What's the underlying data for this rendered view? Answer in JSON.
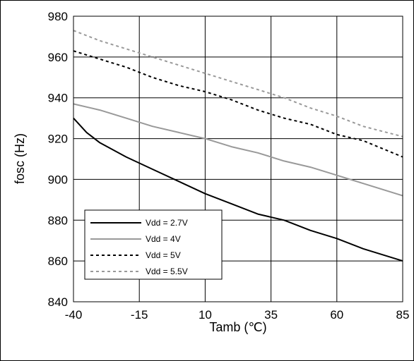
{
  "chart_data": {
    "type": "line",
    "xlabel": "Tamb (℃)",
    "ylabel": "fosc (Hz)",
    "x_ticks": [
      "-40",
      "-15",
      "10",
      "35",
      "60",
      "85"
    ],
    "y_ticks": [
      "840",
      "860",
      "880",
      "900",
      "920",
      "940",
      "960",
      "980"
    ],
    "xlim": [
      -40,
      85
    ],
    "ylim": [
      840,
      980
    ],
    "grid": true,
    "legend_position": "bottom-left",
    "series": [
      {
        "name": "Vdd = 2.7V",
        "color": "#000000",
        "style": "solid",
        "x": [
          -40,
          -35,
          -30,
          -20,
          -10,
          0,
          10,
          20,
          30,
          40,
          50,
          60,
          70,
          85
        ],
        "y": [
          930,
          923,
          918,
          911,
          905,
          899,
          893,
          888,
          883,
          880,
          875,
          871,
          866,
          860
        ]
      },
      {
        "name": "Vdd = 4V",
        "color": "#999999",
        "style": "solid",
        "x": [
          -40,
          -30,
          -20,
          -10,
          0,
          10,
          20,
          30,
          40,
          50,
          60,
          70,
          85
        ],
        "y": [
          937,
          934,
          930,
          926,
          923,
          920,
          916,
          913,
          909,
          906,
          902,
          898,
          892
        ]
      },
      {
        "name": "Vdd = 5V",
        "color": "#000000",
        "style": "dashed",
        "x": [
          -40,
          -30,
          -20,
          -10,
          0,
          10,
          20,
          30,
          40,
          50,
          60,
          70,
          85
        ],
        "y": [
          963,
          959,
          955,
          950,
          946,
          943,
          939,
          934,
          930,
          927,
          922,
          919,
          911
        ]
      },
      {
        "name": "Vdd = 5.5V",
        "color": "#999999",
        "style": "dashed",
        "x": [
          -40,
          -30,
          -20,
          -10,
          0,
          10,
          20,
          30,
          40,
          50,
          60,
          70,
          85
        ],
        "y": [
          973,
          968,
          964,
          960,
          956,
          952,
          948,
          944,
          940,
          935,
          931,
          926,
          921
        ]
      }
    ]
  }
}
